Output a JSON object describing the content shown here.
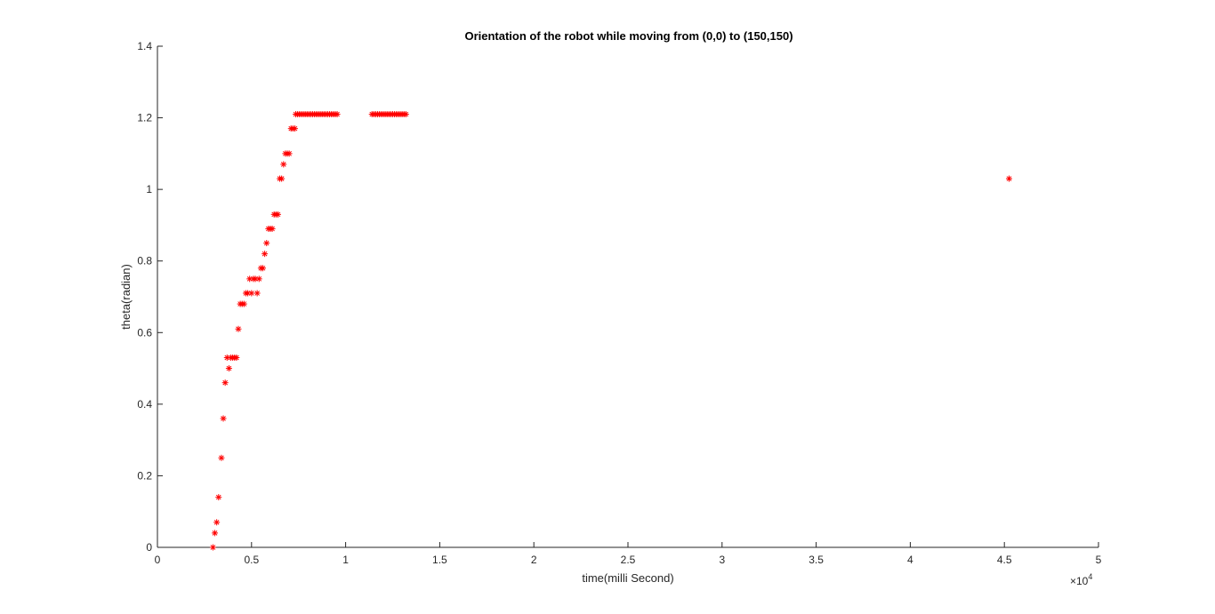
{
  "chart_data": {
    "type": "scatter",
    "title": "Orientation of  the robot while moving from (0,0) to (150,150)",
    "xlabel": "time(milli Second)",
    "ylabel": "theta(radian)",
    "xlim": [
      0,
      50000
    ],
    "ylim": [
      0,
      1.4
    ],
    "x_exponent_label": "×10",
    "x_exponent_power": "4",
    "x_ticks": [
      0,
      5000,
      10000,
      15000,
      20000,
      25000,
      30000,
      35000,
      40000,
      45000,
      50000
    ],
    "x_tick_labels": [
      "0",
      "0.5",
      "1",
      "1.5",
      "2",
      "2.5",
      "3",
      "3.5",
      "4",
      "4.5",
      "5"
    ],
    "y_ticks": [
      0,
      0.2,
      0.4,
      0.6,
      0.8,
      1.0,
      1.2,
      1.4
    ],
    "y_tick_labels": [
      "0",
      "0.2",
      "0.4",
      "0.6",
      "0.8",
      "1",
      "1.2",
      "1.4"
    ],
    "grid": false,
    "marker": "asterisk",
    "marker_color": "#ff0000",
    "x": [
      2950,
      3050,
      3150,
      3250,
      3400,
      3500,
      3600,
      3700,
      3800,
      3900,
      4000,
      4100,
      4200,
      4300,
      4400,
      4500,
      4600,
      4700,
      4800,
      4900,
      5000,
      5100,
      5200,
      5300,
      5400,
      5500,
      5600,
      5700,
      5800,
      5900,
      6000,
      6100,
      6200,
      6300,
      6400,
      6500,
      6600,
      6700,
      6800,
      6900,
      7000,
      7100,
      7200,
      7300,
      7350,
      7450,
      7550,
      7650,
      7750,
      7850,
      7950,
      8050,
      8150,
      8250,
      8350,
      8450,
      8550,
      8650,
      8750,
      8850,
      8950,
      9050,
      9150,
      9250,
      9350,
      9450,
      9550,
      11400,
      11500,
      11600,
      11700,
      11800,
      11900,
      12000,
      12100,
      12200,
      12300,
      12400,
      12500,
      12600,
      12700,
      12800,
      12900,
      13000,
      13100,
      13200,
      45250
    ],
    "y": [
      0.0,
      0.04,
      0.07,
      0.14,
      0.25,
      0.36,
      0.46,
      0.53,
      0.5,
      0.53,
      0.53,
      0.53,
      0.53,
      0.61,
      0.68,
      0.68,
      0.68,
      0.71,
      0.71,
      0.75,
      0.71,
      0.75,
      0.75,
      0.71,
      0.75,
      0.78,
      0.78,
      0.82,
      0.85,
      0.89,
      0.89,
      0.89,
      0.93,
      0.93,
      0.93,
      1.03,
      1.03,
      1.07,
      1.1,
      1.1,
      1.1,
      1.17,
      1.17,
      1.17,
      1.21,
      1.21,
      1.21,
      1.21,
      1.21,
      1.21,
      1.21,
      1.21,
      1.21,
      1.21,
      1.21,
      1.21,
      1.21,
      1.21,
      1.21,
      1.21,
      1.21,
      1.21,
      1.21,
      1.21,
      1.21,
      1.21,
      1.21,
      1.21,
      1.21,
      1.21,
      1.21,
      1.21,
      1.21,
      1.21,
      1.21,
      1.21,
      1.21,
      1.21,
      1.21,
      1.21,
      1.21,
      1.21,
      1.21,
      1.21,
      1.21,
      1.21,
      1.03
    ]
  }
}
